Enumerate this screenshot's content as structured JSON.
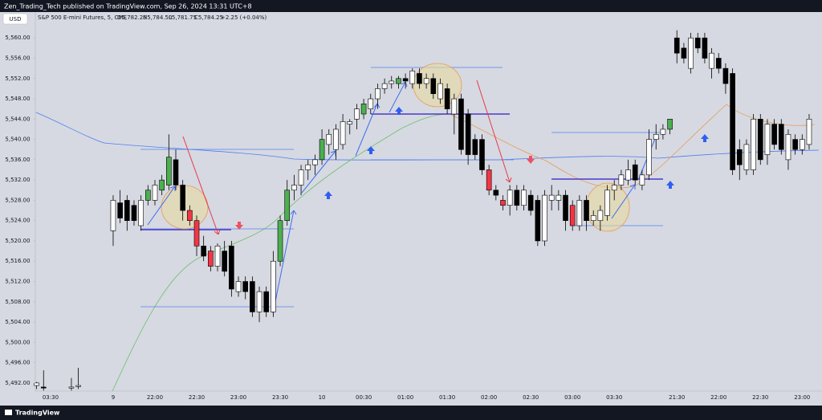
{
  "chart_data": {
    "type": "candlestick",
    "published": "Zen_Trading_Tech published on TradingView.com, Sep 26, 2024 13:31 UTC+8",
    "currency": "USD",
    "title": "S&P 500 E-mini Futures, 5, CME",
    "legend": {
      "open": "O5,782.25",
      "high": "H5,784.50",
      "low": "L5,781.75",
      "close": "C5,784.25",
      "change": "+2.25 (+0.04%)"
    },
    "brand": "TradingView",
    "categories": [
      null,
      null,
      "03:30",
      null,
      null,
      null,
      null,
      null,
      null,
      null,
      null,
      "9",
      null,
      null,
      null,
      null,
      null,
      "22:00",
      null,
      null,
      null,
      null,
      null,
      "22:30",
      null,
      null,
      null,
      null,
      null,
      "23:00",
      null,
      null,
      null,
      null,
      null,
      "23:30",
      null,
      null,
      null,
      null,
      null,
      "10",
      null,
      null,
      null,
      null,
      null,
      "00:30",
      null,
      null,
      null,
      null,
      null,
      "01:00",
      null,
      null,
      null,
      null,
      null,
      "01:30",
      null,
      null,
      null,
      null,
      null,
      "02:00",
      null,
      null,
      null,
      null,
      null,
      "02:30",
      null,
      null,
      null,
      null,
      null,
      "03:00",
      null,
      null,
      null,
      null,
      null,
      "03:30",
      null,
      null,
      null,
      null,
      null,
      null,
      null,
      null,
      "21:30",
      null,
      null,
      null,
      null,
      null,
      "22:00",
      null,
      null,
      null,
      null,
      null,
      "22:30",
      null,
      null,
      null,
      null,
      null,
      "23:00",
      null
    ],
    "open": [
      5491.5,
      5491,
      null,
      null,
      null,
      5491,
      5491.3,
      null,
      null,
      null,
      null,
      5522,
      5527.5,
      5528,
      5527,
      5523,
      5528,
      5528,
      5530,
      5531,
      5536,
      5531,
      5526,
      5524,
      5519,
      5518,
      5515,
      5518,
      5519,
      5510,
      5512,
      5512,
      5506,
      5510,
      5506,
      5516,
      5524,
      5530,
      5531,
      5534,
      5535,
      5536,
      5539,
      5538,
      5539,
      5543,
      5544,
      5545,
      5546,
      5548,
      5550,
      5551,
      5551,
      5552,
      5551,
      5553,
      5551,
      5552,
      5548,
      5550,
      5545,
      5548,
      5545,
      5540,
      5540,
      5534,
      5530,
      5528,
      5527,
      5530,
      5527,
      5529,
      5528,
      5520,
      5528,
      5528,
      5529,
      5527,
      5523,
      5528,
      5524,
      5524,
      5525,
      5530,
      5531,
      5532,
      5535,
      5531,
      5533,
      5540,
      5541,
      5542,
      5560,
      5558,
      5554,
      5560,
      5560,
      5554,
      5556,
      5554,
      5553,
      5538,
      5534,
      5534,
      5544,
      5537,
      5543,
      5543,
      5536,
      5540,
      5538,
      5539
    ],
    "high": [
      5492.2,
      5494.5,
      null,
      null,
      null,
      5493,
      5495,
      null,
      null,
      null,
      null,
      5529,
      5530,
      5529,
      5528,
      5529,
      5531,
      5532,
      5533,
      5541,
      5538,
      5532,
      5527,
      5525,
      5521,
      5519,
      5519.5,
      5520,
      5520,
      5513,
      5513,
      5513,
      5511,
      5511,
      5518,
      5525,
      5532,
      5533,
      5535,
      5536,
      5537,
      5542,
      5542,
      5543,
      5545,
      5544,
      5547,
      5548,
      5549,
      5551,
      5552,
      5552.5,
      5552.5,
      5553,
      5554,
      5554,
      5553,
      5553,
      5552,
      5551,
      5549,
      5549,
      5546,
      5541,
      5541,
      5535,
      5531,
      5529,
      5531,
      5531,
      5531,
      5530,
      5529,
      5530,
      5531,
      5530,
      5530,
      5528,
      5529,
      5529,
      5526,
      5527,
      5531,
      5532,
      5534,
      5536,
      5536,
      5534,
      5542,
      5543,
      5543,
      5544,
      5561.5,
      5559,
      5561,
      5561,
      5561,
      5558,
      5557,
      5555,
      5554,
      5540,
      5540,
      5545,
      5545,
      5544,
      5544,
      5544,
      5542,
      5541,
      5541,
      5545
    ],
    "low": [
      5490.8,
      5490.5,
      null,
      null,
      null,
      5490.5,
      5490.8,
      null,
      null,
      null,
      null,
      5519,
      5523.5,
      5522,
      5523,
      5522,
      5527,
      5527,
      5529,
      5530,
      5530,
      5524,
      5523,
      5517,
      5516,
      5514,
      5514,
      5513,
      5509,
      5509,
      5508.5,
      5505,
      5504,
      5505,
      5505,
      5515,
      5523,
      5528,
      5529,
      5532,
      5533,
      5535,
      5537,
      5536,
      5538,
      5541,
      5542,
      5544,
      5545,
      5546,
      5549,
      5550,
      5550,
      5550,
      5550,
      5550,
      5550,
      5548,
      5547,
      5545,
      5541,
      5537,
      5535,
      5536,
      5533,
      5529,
      5528,
      5526,
      5525,
      5526,
      5526,
      5525,
      5519,
      5519,
      5526,
      5526,
      5522,
      5522,
      5522,
      5522,
      5523,
      5522,
      5524,
      5528,
      5530,
      5531,
      5531,
      5530,
      5532,
      5538,
      5540,
      5541,
      5555,
      5555,
      5553,
      5557,
      5555,
      5552,
      5553,
      5549,
      5533,
      5532,
      5533,
      5533,
      5535,
      5535,
      5538,
      5537,
      5534,
      5537,
      5537,
      5538
    ],
    "close": [
      5492,
      5491.2,
      null,
      null,
      null,
      5491.2,
      5491.5,
      null,
      null,
      null,
      null,
      5528,
      5524.5,
      5524,
      5524,
      5528,
      5530,
      5531,
      5532,
      5536.5,
      5531,
      5526,
      5524,
      5519,
      5517,
      5515,
      5519,
      5514,
      5510.5,
      5512,
      5510,
      5506,
      5510,
      5506,
      5516,
      5524,
      5530,
      5531,
      5534,
      5535,
      5536,
      5540,
      5541,
      5542,
      5543.5,
      5543.5,
      5546,
      5547,
      5548,
      5550,
      5551,
      5551.5,
      5552,
      5551.5,
      5553.5,
      5551,
      5552,
      5549,
      5551,
      5546,
      5548,
      5538,
      5537,
      5537,
      5534,
      5530,
      5529,
      5527,
      5530,
      5527,
      5530,
      5526,
      5520,
      5529,
      5529,
      5529,
      5524,
      5523,
      5528,
      5524,
      5525,
      5526,
      5530,
      5531,
      5533,
      5534,
      5532,
      5533,
      5540,
      5541,
      5542,
      5544,
      5557,
      5556,
      5560,
      5558,
      5556,
      5557,
      5554,
      5551,
      5534,
      5535,
      5539,
      5544,
      5536,
      5543,
      5539,
      5538,
      5541,
      5538,
      5540,
      5544
    ],
    "colors": [
      "#ffffff",
      "#000000",
      null,
      null,
      null,
      "#ffffff",
      "#ffffff",
      null,
      null,
      null,
      null,
      "#ffffff",
      "#000000",
      "#000000",
      "#000000",
      "#ffffff",
      "#4caf50",
      "#ffffff",
      "#4caf50",
      "#4caf50",
      "#000000",
      "#000000",
      "#f23645",
      "#f23645",
      "#000000",
      "#f23645",
      "#ffffff",
      "#000000",
      "#000000",
      "#ffffff",
      "#000000",
      "#000000",
      "#ffffff",
      "#000000",
      "#ffffff",
      "#4caf50",
      "#4caf50",
      "#ffffff",
      "#ffffff",
      "#ffffff",
      "#ffffff",
      "#4caf50",
      "#ffffff",
      "#ffffff",
      "#ffffff",
      "#ffffff",
      "#ffffff",
      "#4caf50",
      "#ffffff",
      "#ffffff",
      "#ffffff",
      "#ffffff",
      "#4caf50",
      "#000000",
      "#ffffff",
      "#000000",
      "#ffffff",
      "#000000",
      "#ffffff",
      "#000000",
      "#ffffff",
      "#000000",
      "#000000",
      "#000000",
      "#000000",
      "#f23645",
      "#000000",
      "#f23645",
      "#ffffff",
      "#000000",
      "#ffffff",
      "#000000",
      "#000000",
      "#ffffff",
      "#ffffff",
      "#ffffff",
      "#000000",
      "#f23645",
      "#ffffff",
      "#000000",
      "#ffffff",
      "#ffffff",
      "#ffffff",
      "#ffffff",
      "#ffffff",
      "#ffffff",
      "#000000",
      "#ffffff",
      "#ffffff",
      "#ffffff",
      "#ffffff",
      "#4caf50",
      "#000000",
      "#000000",
      "#ffffff",
      "#000000",
      "#000000",
      "#ffffff",
      "#000000",
      "#000000",
      "#000000",
      "#000000",
      "#ffffff",
      "#ffffff",
      "#000000",
      "#ffffff",
      "#000000",
      "#000000",
      "#ffffff",
      "#000000",
      "#ffffff",
      "#ffffff"
    ],
    "ylim": [
      5490.4,
      5565.1
    ],
    "yticks": [
      {
        "value": 5492,
        "label": "5,492.00"
      },
      {
        "value": 5496,
        "label": "5,496.00"
      },
      {
        "value": 5500,
        "label": "5,500.00"
      },
      {
        "value": 5504,
        "label": "5,504.00"
      },
      {
        "value": 5508,
        "label": "5,508.00"
      },
      {
        "value": 5512,
        "label": "5,512.00"
      },
      {
        "value": 5516,
        "label": "5,516.00"
      },
      {
        "value": 5520,
        "label": "5,520.00"
      },
      {
        "value": 5524,
        "label": "5,524.00"
      },
      {
        "value": 5528,
        "label": "5,528.00"
      },
      {
        "value": 5532,
        "label": "5,532.00"
      },
      {
        "value": 5536,
        "label": "5,536.00"
      },
      {
        "value": 5540,
        "label": "5,540.00"
      },
      {
        "value": 5544,
        "label": "5,544.00"
      },
      {
        "value": 5548,
        "label": "5,548.00"
      },
      {
        "value": 5552,
        "label": "5,552.00"
      },
      {
        "value": 5556,
        "label": "5,556.00"
      },
      {
        "value": 5560,
        "label": "5,560.00"
      }
    ],
    "grid": false
  }
}
